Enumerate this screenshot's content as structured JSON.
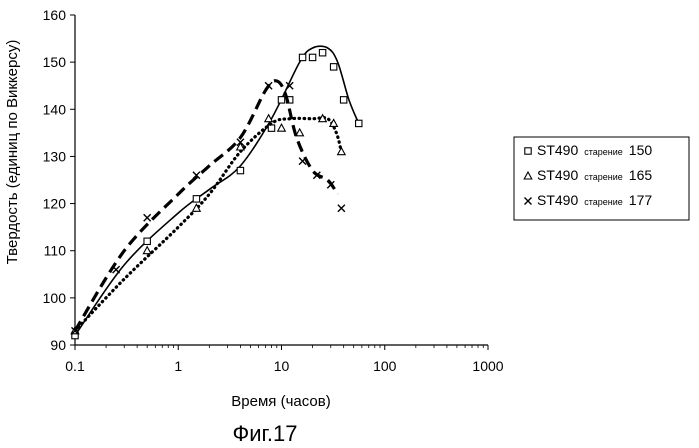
{
  "chart_data": {
    "type": "scatter",
    "xscale": "log",
    "xlim": [
      0.1,
      1000
    ],
    "ylim": [
      90,
      160
    ],
    "xticks": [
      0.1,
      1,
      10,
      100,
      1000
    ],
    "xtick_labels": [
      "0.1",
      "1",
      "10",
      "100",
      "1000"
    ],
    "yticks": [
      90,
      100,
      110,
      120,
      130,
      140,
      150,
      160
    ],
    "ytick_labels": [
      "90",
      "100",
      "110",
      "120",
      "130",
      "140",
      "150",
      "160"
    ],
    "xlabel": "Время (часов)",
    "ylabel": "Твердость (единиц по Виккерсу)",
    "grid": false,
    "legend_position": "right",
    "caption": "Фиг.17",
    "series": [
      {
        "name": "ST490",
        "label_small": "старение",
        "label_value": "150",
        "marker": "square",
        "line_style": "solid",
        "points": [
          {
            "x": 0.1,
            "y": 92
          },
          {
            "x": 0.5,
            "y": 112
          },
          {
            "x": 1.5,
            "y": 121
          },
          {
            "x": 4,
            "y": 127
          },
          {
            "x": 8,
            "y": 136
          },
          {
            "x": 10,
            "y": 142
          },
          {
            "x": 12,
            "y": 142
          },
          {
            "x": 16,
            "y": 151
          },
          {
            "x": 20,
            "y": 151
          },
          {
            "x": 25,
            "y": 152
          },
          {
            "x": 32,
            "y": 149
          },
          {
            "x": 40,
            "y": 142
          },
          {
            "x": 56,
            "y": 137
          }
        ],
        "fit": [
          {
            "x": 0.1,
            "y": 92
          },
          {
            "x": 0.3,
            "y": 107
          },
          {
            "x": 1,
            "y": 118
          },
          {
            "x": 2,
            "y": 123
          },
          {
            "x": 4,
            "y": 128
          },
          {
            "x": 8,
            "y": 138
          },
          {
            "x": 15,
            "y": 150
          },
          {
            "x": 20,
            "y": 153
          },
          {
            "x": 28,
            "y": 153
          },
          {
            "x": 35,
            "y": 150
          },
          {
            "x": 45,
            "y": 142
          },
          {
            "x": 56,
            "y": 137
          }
        ]
      },
      {
        "name": "ST490",
        "label_small": "старение",
        "label_value": "165",
        "marker": "triangle",
        "line_style": "dotted",
        "points": [
          {
            "x": 0.1,
            "y": 93
          },
          {
            "x": 0.5,
            "y": 110
          },
          {
            "x": 1.5,
            "y": 119
          },
          {
            "x": 4,
            "y": 132
          },
          {
            "x": 7.5,
            "y": 138
          },
          {
            "x": 10,
            "y": 136
          },
          {
            "x": 15,
            "y": 135
          },
          {
            "x": 25,
            "y": 138
          },
          {
            "x": 32,
            "y": 137
          },
          {
            "x": 38,
            "y": 131
          }
        ],
        "fit": [
          {
            "x": 0.1,
            "y": 93
          },
          {
            "x": 0.3,
            "y": 104
          },
          {
            "x": 1,
            "y": 115
          },
          {
            "x": 2,
            "y": 122
          },
          {
            "x": 4,
            "y": 131
          },
          {
            "x": 8,
            "y": 137
          },
          {
            "x": 12,
            "y": 138
          },
          {
            "x": 20,
            "y": 138
          },
          {
            "x": 28,
            "y": 138
          },
          {
            "x": 34,
            "y": 135
          },
          {
            "x": 38,
            "y": 131
          }
        ]
      },
      {
        "name": "ST490",
        "label_small": "старение",
        "label_value": "177",
        "marker": "x",
        "line_style": "dashed",
        "points": [
          {
            "x": 0.1,
            "y": 93
          },
          {
            "x": 0.25,
            "y": 106
          },
          {
            "x": 0.5,
            "y": 117
          },
          {
            "x": 1.5,
            "y": 126
          },
          {
            "x": 4,
            "y": 133
          },
          {
            "x": 7.5,
            "y": 145
          },
          {
            "x": 12,
            "y": 145
          },
          {
            "x": 16,
            "y": 129
          },
          {
            "x": 22,
            "y": 126
          },
          {
            "x": 30,
            "y": 124
          },
          {
            "x": 38,
            "y": 119
          }
        ],
        "fit": [
          {
            "x": 0.1,
            "y": 93
          },
          {
            "x": 0.3,
            "y": 110
          },
          {
            "x": 1,
            "y": 122
          },
          {
            "x": 2,
            "y": 128
          },
          {
            "x": 4,
            "y": 134
          },
          {
            "x": 7,
            "y": 144
          },
          {
            "x": 9,
            "y": 146
          },
          {
            "x": 11,
            "y": 143
          },
          {
            "x": 14,
            "y": 134
          },
          {
            "x": 20,
            "y": 127
          },
          {
            "x": 28,
            "y": 125
          },
          {
            "x": 35,
            "y": 122
          }
        ]
      }
    ]
  }
}
